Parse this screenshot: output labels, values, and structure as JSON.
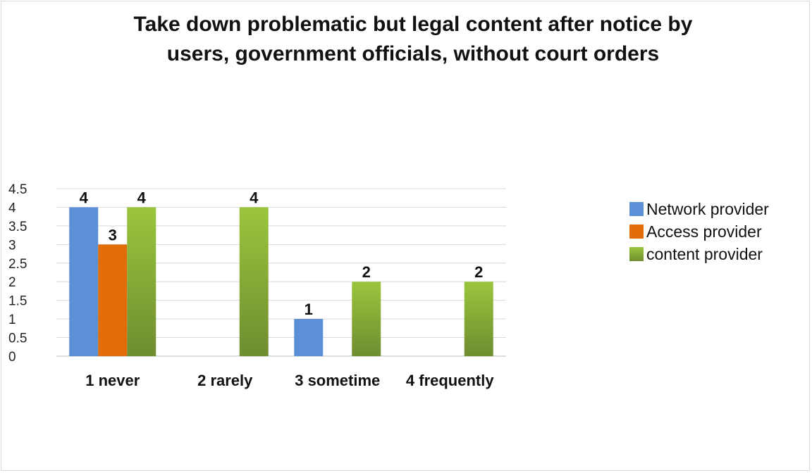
{
  "chart_data": {
    "type": "bar",
    "title_lines": [
      "Take down problematic but legal content after notice by",
      "users, government officials, without court orders"
    ],
    "categories": [
      "1 never",
      "2 rarely",
      "3 sometime",
      "4 frequently"
    ],
    "series": [
      {
        "name": "Network provider",
        "values": [
          4,
          0,
          1,
          0
        ],
        "labels": [
          "4",
          "",
          "1",
          ""
        ],
        "color": "#5b8fd6"
      },
      {
        "name": "Access provider",
        "values": [
          3,
          0,
          0,
          0
        ],
        "labels": [
          "3",
          "",
          "",
          ""
        ],
        "color": "#e36c0a"
      },
      {
        "name": "content provider",
        "values": [
          4,
          4,
          2,
          2
        ],
        "labels": [
          "4",
          "4",
          "2",
          "2"
        ],
        "color": "#9bc53d",
        "color_bottom": "#6e8d30"
      }
    ],
    "y_ticks": [
      "0",
      "0.5",
      "1",
      "1.5",
      "2",
      "2.5",
      "3",
      "3.5",
      "4",
      "4.5"
    ],
    "ylim": [
      0,
      4.5
    ],
    "grid": true,
    "legend_position": "right"
  }
}
